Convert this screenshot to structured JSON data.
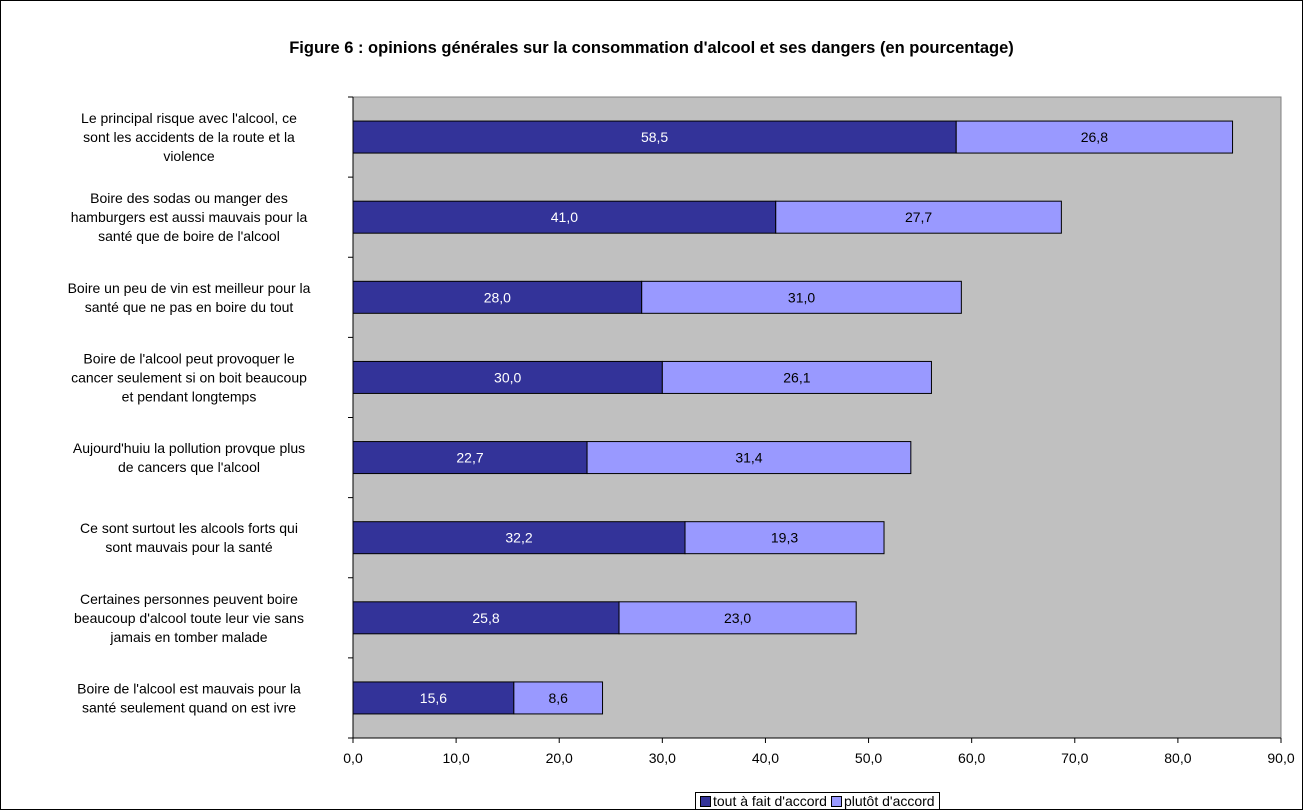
{
  "chart_data": {
    "type": "bar",
    "orientation": "horizontal",
    "stacked": true,
    "title": "Figure 6 : opinions générales sur la consommation d'alcool et ses dangers (en pourcentage)",
    "categories": [
      "Le principal risque avec l'alcool, ce sont les accidents de la route et la violence",
      "Boire des sodas ou manger des hamburgers est aussi mauvais pour la santé que de boire de l'alcool",
      "Boire un peu de vin est meilleur pour la santé que ne pas en boire du tout",
      "Boire de l'alcool peut provoquer le cancer seulement si on boit beaucoup et pendant longtemps",
      "Aujourd'huiu la pollution provque plus de cancers que l'alcool",
      "Ce sont surtout les alcools forts qui sont mauvais pour la santé",
      "Certaines personnes peuvent boire beaucoup d'alcool toute leur vie sans jamais en tomber malade",
      "Boire de l'alcool est mauvais pour la santé seulement quand on est ivre"
    ],
    "category_lines": [
      [
        "Le principal risque avec l'alcool, ce",
        "sont les accidents de la route et la",
        "violence"
      ],
      [
        "Boire des sodas ou manger des",
        "hamburgers est aussi mauvais pour la",
        "santé que de boire de l'alcool"
      ],
      [
        "Boire un peu de vin est meilleur pour la",
        "santé que ne pas en boire du tout"
      ],
      [
        "Boire de l'alcool peut provoquer le",
        "cancer seulement si on boit beaucoup",
        "et pendant longtemps"
      ],
      [
        "Aujourd'huiu la pollution provque plus",
        "de cancers que l'alcool"
      ],
      [
        "Ce sont surtout les alcools forts qui",
        "sont mauvais pour la santé"
      ],
      [
        "Certaines personnes peuvent boire",
        "beaucoup d'alcool toute leur vie sans",
        "jamais en tomber malade"
      ],
      [
        "Boire de l'alcool est mauvais pour la",
        "santé seulement quand on est ivre"
      ]
    ],
    "series": [
      {
        "name": "tout à fait d'accord",
        "color": "#333399",
        "label_color": "#ffffff",
        "values": [
          58.5,
          41.0,
          28.0,
          30.0,
          22.7,
          32.2,
          25.8,
          15.6
        ],
        "labels": [
          "58,5",
          "41,0",
          "28,0",
          "30,0",
          "22,7",
          "32,2",
          "25,8",
          "15,6"
        ]
      },
      {
        "name": "plutôt d'accord",
        "color": "#9999ff",
        "label_color": "#000000",
        "values": [
          26.8,
          27.7,
          31.0,
          26.1,
          31.4,
          19.3,
          23.0,
          8.6
        ],
        "labels": [
          "26,8",
          "27,7",
          "31,0",
          "26,1",
          "31,4",
          "19,3",
          "23,0",
          "8,6"
        ]
      }
    ],
    "xlim": [
      0,
      90
    ],
    "xticks": [
      0,
      10,
      20,
      30,
      40,
      50,
      60,
      70,
      80,
      90
    ],
    "xtick_labels": [
      "0,0",
      "10,0",
      "20,0",
      "30,0",
      "40,0",
      "50,0",
      "60,0",
      "70,0",
      "80,0",
      "90,0"
    ],
    "plot_background": "#c0c0c0",
    "grid": false,
    "legend_position": "bottom"
  }
}
